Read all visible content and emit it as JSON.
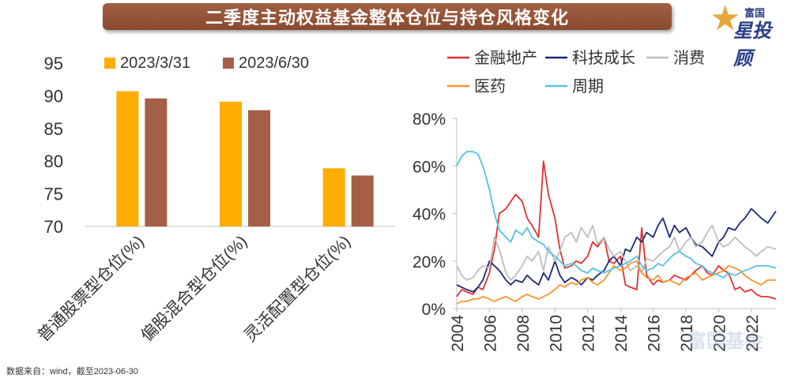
{
  "header": {
    "title": "二季度主动权益基金整体仓位与持仓风格变化"
  },
  "logo": {
    "small_text": "富国",
    "big_text": "星投顾",
    "watermark_text": "富国基金"
  },
  "source_note": "数据来自：wind，截至2023-06-30",
  "colors": {
    "banner": "#9a5539",
    "series_2023_03_31": "#ffad00",
    "series_2023_06_30": "#a65f47",
    "financial_real_estate": "#e03131",
    "tech_growth": "#1b2a78",
    "consumption": "#bdbdbd",
    "medicine": "#f7962c",
    "cyclical": "#54c2e6"
  },
  "chart_data": [
    {
      "type": "bar",
      "title": "",
      "categories": [
        "普通股票型仓位(%)",
        "偏股混合型仓位(%)",
        "灵活配置型仓位(%)"
      ],
      "series": [
        {
          "name": "2023/3/31",
          "values": [
            90.7,
            89.1,
            78.9
          ]
        },
        {
          "name": "2023/6/30",
          "values": [
            89.6,
            87.8,
            77.8
          ]
        }
      ],
      "yticks": [
        "95",
        "90",
        "85",
        "80",
        "75",
        "70"
      ],
      "ylim": [
        70,
        95
      ],
      "xlabel": "",
      "ylabel": ""
    },
    {
      "type": "line",
      "title": "",
      "legend": [
        "金融地产",
        "科技成长",
        "消费",
        "医药",
        "周期"
      ],
      "xticks": [
        "2004",
        "2006",
        "2008",
        "2010",
        "2012",
        "2014",
        "2016",
        "2018",
        "2020",
        "2022"
      ],
      "yticks": [
        "80%",
        "60%",
        "40%",
        "20%",
        "0%"
      ],
      "xlim": [
        2004.0,
        2023.5
      ],
      "ylim": [
        0,
        80
      ],
      "series": [
        {
          "name": "金融地产",
          "x": [
            2004.0,
            2004.3,
            2004.6,
            2005.0,
            2005.3,
            2005.6,
            2006.0,
            2006.3,
            2006.6,
            2007.0,
            2007.3,
            2007.6,
            2008.0,
            2008.3,
            2008.6,
            2009.0,
            2009.3,
            2009.6,
            2010.0,
            2010.3,
            2010.6,
            2011.0,
            2011.3,
            2011.6,
            2012.0,
            2012.3,
            2012.6,
            2013.0,
            2013.3,
            2013.6,
            2014.0,
            2014.3,
            2014.6,
            2015.0,
            2015.3,
            2015.6,
            2016.0,
            2016.3,
            2016.6,
            2017.0,
            2017.3,
            2017.6,
            2018.0,
            2018.3,
            2018.6,
            2019.0,
            2019.3,
            2019.6,
            2020.0,
            2020.3,
            2020.6,
            2021.0,
            2021.3,
            2021.6,
            2022.0,
            2022.3,
            2022.6,
            2023.0,
            2023.5
          ],
          "values": [
            5,
            8,
            7,
            6,
            9,
            8,
            15,
            25,
            40,
            42,
            45,
            48,
            45,
            38,
            35,
            30,
            62,
            48,
            38,
            25,
            17,
            18,
            20,
            19,
            22,
            28,
            26,
            30,
            20,
            19,
            22,
            10,
            9,
            8,
            34,
            14,
            10,
            12,
            11,
            12,
            14,
            13,
            12,
            14,
            16,
            18,
            15,
            14,
            18,
            16,
            15,
            8,
            9,
            7,
            8,
            6,
            5,
            5,
            4
          ]
        },
        {
          "name": "科技成长",
          "x": [
            2004.0,
            2004.3,
            2004.6,
            2005.0,
            2005.3,
            2005.6,
            2006.0,
            2006.3,
            2006.6,
            2007.0,
            2007.3,
            2007.6,
            2008.0,
            2008.3,
            2008.6,
            2009.0,
            2009.3,
            2009.6,
            2010.0,
            2010.3,
            2010.6,
            2011.0,
            2011.3,
            2011.6,
            2012.0,
            2012.3,
            2012.6,
            2013.0,
            2013.3,
            2013.6,
            2014.0,
            2014.3,
            2014.6,
            2015.0,
            2015.3,
            2015.6,
            2016.0,
            2016.3,
            2016.6,
            2017.0,
            2017.3,
            2017.6,
            2018.0,
            2018.3,
            2018.6,
            2019.0,
            2019.3,
            2019.6,
            2020.0,
            2020.3,
            2020.6,
            2021.0,
            2021.3,
            2021.6,
            2022.0,
            2022.3,
            2022.6,
            2023.0,
            2023.5
          ],
          "values": [
            10,
            9,
            8,
            7,
            9,
            12,
            20,
            18,
            16,
            12,
            10,
            12,
            11,
            14,
            12,
            10,
            15,
            12,
            20,
            14,
            11,
            13,
            12,
            10,
            13,
            12,
            14,
            16,
            20,
            22,
            18,
            25,
            24,
            30,
            28,
            32,
            30,
            35,
            38,
            30,
            35,
            32,
            34,
            30,
            27,
            26,
            24,
            22,
            28,
            30,
            34,
            33,
            36,
            38,
            42,
            40,
            38,
            36,
            41
          ]
        },
        {
          "name": "消费",
          "x": [
            2004.0,
            2004.3,
            2004.6,
            2005.0,
            2005.3,
            2005.6,
            2006.0,
            2006.3,
            2006.6,
            2007.0,
            2007.3,
            2007.6,
            2008.0,
            2008.3,
            2008.6,
            2009.0,
            2009.3,
            2009.6,
            2010.0,
            2010.3,
            2010.6,
            2011.0,
            2011.3,
            2011.6,
            2012.0,
            2012.3,
            2012.6,
            2013.0,
            2013.3,
            2013.6,
            2014.0,
            2014.3,
            2014.6,
            2015.0,
            2015.3,
            2015.6,
            2016.0,
            2016.3,
            2016.6,
            2017.0,
            2017.3,
            2017.6,
            2018.0,
            2018.3,
            2018.6,
            2019.0,
            2019.3,
            2019.6,
            2020.0,
            2020.3,
            2020.6,
            2021.0,
            2021.3,
            2021.6,
            2022.0,
            2022.3,
            2022.6,
            2023.0,
            2023.5
          ],
          "values": [
            18,
            14,
            12,
            13,
            16,
            18,
            17,
            30,
            25,
            15,
            12,
            14,
            18,
            22,
            20,
            24,
            16,
            26,
            20,
            24,
            30,
            32,
            28,
            34,
            30,
            35,
            27,
            30,
            25,
            22,
            24,
            20,
            16,
            18,
            15,
            21,
            20,
            22,
            24,
            26,
            30,
            24,
            28,
            30,
            26,
            28,
            32,
            35,
            28,
            26,
            27,
            30,
            28,
            26,
            24,
            22,
            24,
            26,
            25
          ]
        },
        {
          "name": "医药",
          "x": [
            2004.0,
            2004.3,
            2004.6,
            2005.0,
            2005.3,
            2005.6,
            2006.0,
            2006.3,
            2006.6,
            2007.0,
            2007.3,
            2007.6,
            2008.0,
            2008.3,
            2008.6,
            2009.0,
            2009.3,
            2009.6,
            2010.0,
            2010.3,
            2010.6,
            2011.0,
            2011.3,
            2011.6,
            2012.0,
            2012.3,
            2012.6,
            2013.0,
            2013.3,
            2013.6,
            2014.0,
            2014.3,
            2014.6,
            2015.0,
            2015.3,
            2015.6,
            2016.0,
            2016.3,
            2016.6,
            2017.0,
            2017.3,
            2017.6,
            2018.0,
            2018.3,
            2018.6,
            2019.0,
            2019.3,
            2019.6,
            2020.0,
            2020.3,
            2020.6,
            2021.0,
            2021.3,
            2021.6,
            2022.0,
            2022.3,
            2022.6,
            2023.0,
            2023.5
          ],
          "values": [
            2,
            3,
            3,
            4,
            4,
            5,
            4,
            3,
            4,
            5,
            4,
            3,
            5,
            6,
            5,
            4,
            5,
            6,
            8,
            10,
            9,
            11,
            10,
            12,
            13,
            11,
            10,
            12,
            15,
            18,
            16,
            17,
            19,
            20,
            15,
            13,
            12,
            14,
            11,
            12,
            11,
            10,
            13,
            14,
            15,
            12,
            13,
            14,
            15,
            16,
            18,
            17,
            16,
            14,
            12,
            11,
            10,
            12,
            12
          ]
        },
        {
          "name": "周期",
          "x": [
            2004.0,
            2004.3,
            2004.6,
            2005.0,
            2005.3,
            2005.6,
            2006.0,
            2006.3,
            2006.6,
            2007.0,
            2007.3,
            2007.6,
            2008.0,
            2008.3,
            2008.6,
            2009.0,
            2009.3,
            2009.6,
            2010.0,
            2010.3,
            2010.6,
            2011.0,
            2011.3,
            2011.6,
            2012.0,
            2012.3,
            2012.6,
            2013.0,
            2013.3,
            2013.6,
            2014.0,
            2014.3,
            2014.6,
            2015.0,
            2015.3,
            2015.6,
            2016.0,
            2016.3,
            2016.6,
            2017.0,
            2017.3,
            2017.6,
            2018.0,
            2018.3,
            2018.6,
            2019.0,
            2019.3,
            2019.6,
            2020.0,
            2020.3,
            2020.6,
            2021.0,
            2021.3,
            2021.6,
            2022.0,
            2022.3,
            2022.6,
            2023.0,
            2023.5
          ],
          "values": [
            60,
            64,
            66,
            66,
            65,
            60,
            50,
            40,
            33,
            30,
            28,
            33,
            31,
            34,
            30,
            28,
            27,
            24,
            22,
            20,
            18,
            19,
            18,
            16,
            15,
            17,
            16,
            15,
            16,
            17,
            18,
            19,
            20,
            22,
            18,
            16,
            17,
            19,
            18,
            21,
            23,
            24,
            22,
            21,
            19,
            18,
            16,
            15,
            14,
            13,
            15,
            14,
            15,
            16,
            17,
            18,
            18,
            18,
            17
          ]
        }
      ]
    }
  ]
}
